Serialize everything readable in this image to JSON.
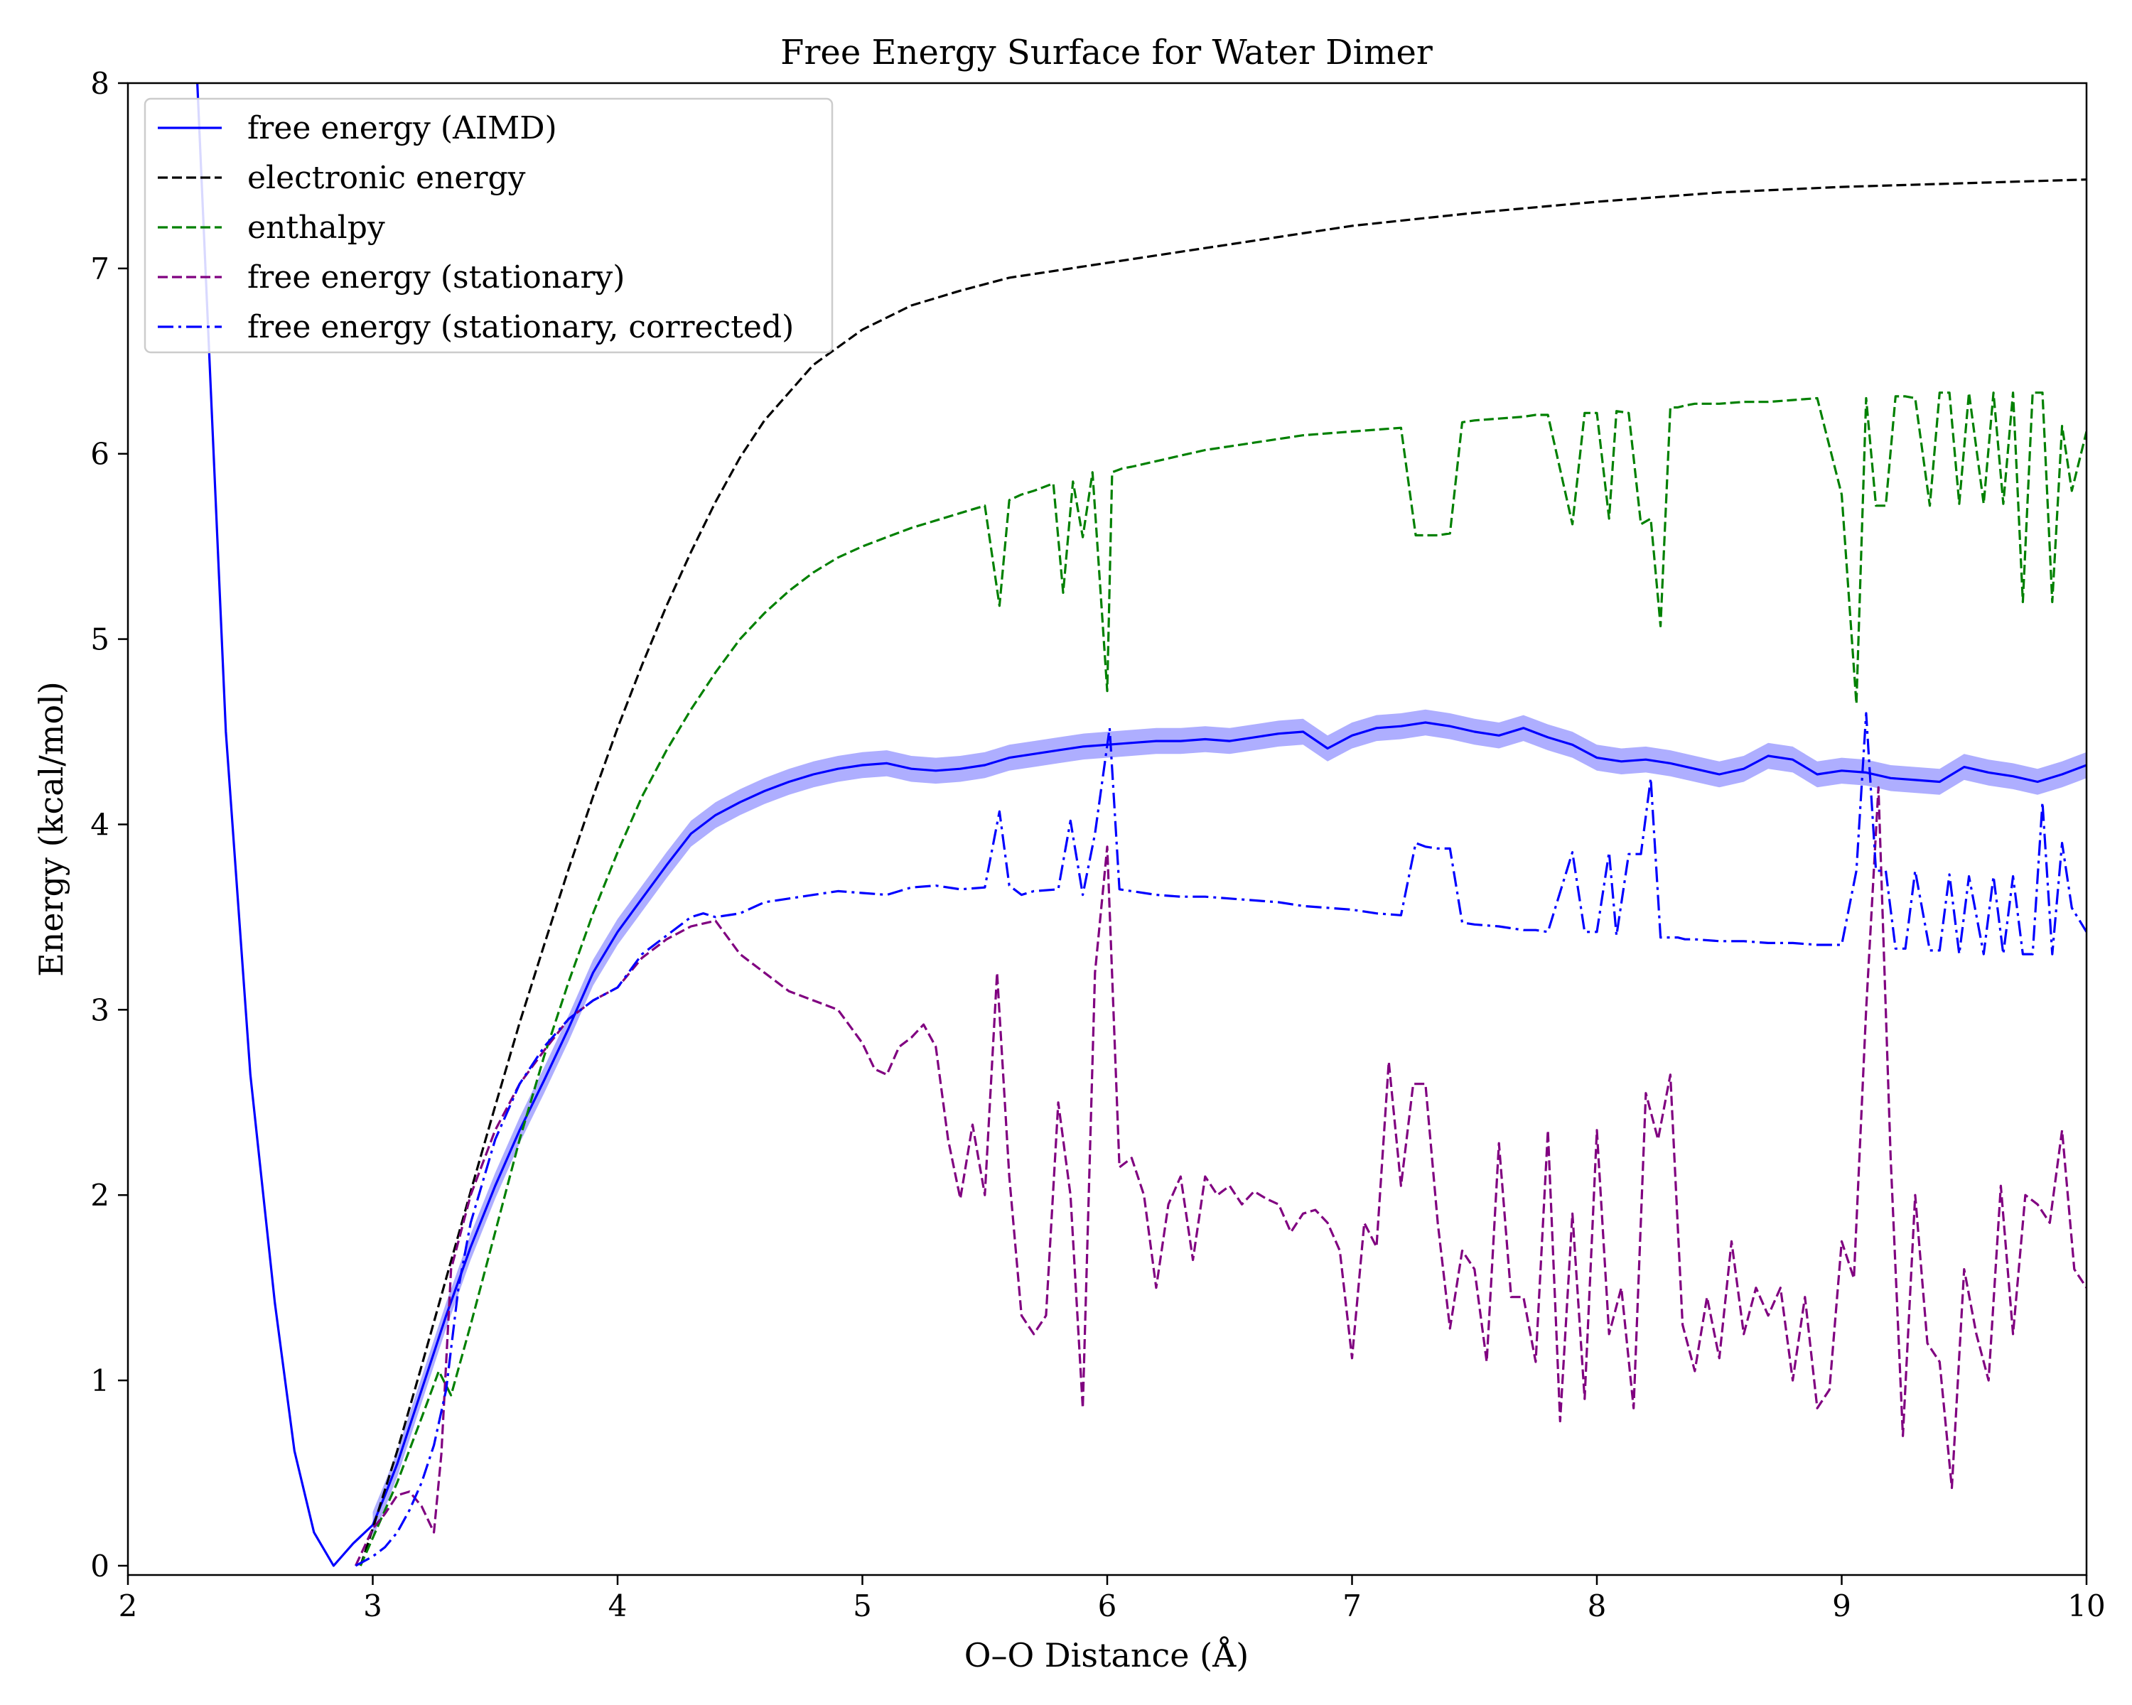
{
  "chart_data": {
    "type": "line",
    "title": "Free Energy Surface for Water Dimer",
    "xlabel": "O–O Distance (Å)",
    "ylabel": "Energy (kcal/mol)",
    "xlim": [
      2,
      10
    ],
    "ylim": [
      -0.05,
      8
    ],
    "xticks": [
      2,
      3,
      4,
      5,
      6,
      7,
      8,
      9,
      10
    ],
    "xtick_labels": [
      "2",
      "3",
      "4",
      "5",
      "6",
      "7",
      "8",
      "9",
      "10"
    ],
    "yticks": [
      0,
      1,
      2,
      3,
      4,
      5,
      6,
      7,
      8
    ],
    "ytick_labels": [
      "0",
      "1",
      "2",
      "3",
      "4",
      "5",
      "6",
      "7",
      "8"
    ],
    "grid": false,
    "legend_position": "top-left",
    "series": [
      {
        "name": "free energy (AIMD)",
        "color": "#0000ff",
        "style": "solid",
        "band_color": "#6b6bff",
        "band_half_width": 0.07,
        "x": [
          2.28,
          2.4,
          2.5,
          2.6,
          2.68,
          2.76,
          2.84,
          2.92,
          3.0,
          3.05,
          3.1,
          3.15,
          3.2,
          3.25,
          3.3,
          3.4,
          3.5,
          3.6,
          3.7,
          3.8,
          3.9,
          4.0,
          4.1,
          4.2,
          4.3,
          4.4,
          4.5,
          4.6,
          4.7,
          4.8,
          4.9,
          5.0,
          5.1,
          5.2,
          5.3,
          5.4,
          5.5,
          5.6,
          5.7,
          5.8,
          5.9,
          6.0,
          6.1,
          6.2,
          6.3,
          6.4,
          6.5,
          6.6,
          6.7,
          6.8,
          6.9,
          7.0,
          7.1,
          7.2,
          7.3,
          7.4,
          7.5,
          7.6,
          7.7,
          7.8,
          7.9,
          8.0,
          8.1,
          8.2,
          8.3,
          8.4,
          8.5,
          8.6,
          8.7,
          8.8,
          8.9,
          9.0,
          9.1,
          9.2,
          9.3,
          9.4,
          9.5,
          9.6,
          9.7,
          9.8,
          9.9,
          10.0
        ],
        "y": [
          8.1,
          4.5,
          2.65,
          1.42,
          0.62,
          0.18,
          0.0,
          0.12,
          0.22,
          0.38,
          0.55,
          0.75,
          0.95,
          1.15,
          1.35,
          1.72,
          2.05,
          2.35,
          2.62,
          2.9,
          3.2,
          3.42,
          3.6,
          3.78,
          3.95,
          4.05,
          4.12,
          4.18,
          4.23,
          4.27,
          4.3,
          4.32,
          4.33,
          4.3,
          4.29,
          4.3,
          4.32,
          4.36,
          4.38,
          4.4,
          4.42,
          4.43,
          4.44,
          4.45,
          4.45,
          4.46,
          4.45,
          4.47,
          4.49,
          4.5,
          4.41,
          4.48,
          4.52,
          4.53,
          4.55,
          4.53,
          4.5,
          4.48,
          4.52,
          4.47,
          4.43,
          4.36,
          4.34,
          4.35,
          4.33,
          4.3,
          4.27,
          4.3,
          4.37,
          4.35,
          4.27,
          4.29,
          4.28,
          4.25,
          4.24,
          4.23,
          4.31,
          4.28,
          4.26,
          4.23,
          4.27,
          4.32
        ]
      },
      {
        "name": "electronic energy",
        "color": "#000000",
        "style": "dashed",
        "x": [
          2.95,
          3.0,
          3.1,
          3.2,
          3.3,
          3.4,
          3.5,
          3.6,
          3.7,
          3.8,
          3.9,
          4.0,
          4.1,
          4.2,
          4.3,
          4.4,
          4.5,
          4.6,
          4.8,
          5.0,
          5.2,
          5.4,
          5.6,
          5.8,
          6.0,
          6.2,
          6.5,
          7.0,
          7.5,
          8.0,
          8.5,
          9.0,
          9.5,
          10.0
        ],
        "y": [
          0.0,
          0.2,
          0.62,
          1.08,
          1.55,
          2.02,
          2.48,
          2.93,
          3.35,
          3.76,
          4.15,
          4.52,
          4.86,
          5.18,
          5.47,
          5.74,
          5.98,
          6.18,
          6.48,
          6.67,
          6.8,
          6.88,
          6.95,
          6.99,
          7.03,
          7.07,
          7.13,
          7.23,
          7.3,
          7.36,
          7.41,
          7.44,
          7.46,
          7.48
        ]
      },
      {
        "name": "enthalpy",
        "color": "#008000",
        "style": "dashed",
        "x": [
          2.95,
          3.0,
          3.1,
          3.2,
          3.27,
          3.32,
          3.4,
          3.5,
          3.6,
          3.7,
          3.8,
          3.9,
          4.0,
          4.1,
          4.2,
          4.3,
          4.4,
          4.5,
          4.6,
          4.7,
          4.8,
          4.9,
          5.0,
          5.1,
          5.2,
          5.3,
          5.4,
          5.5,
          5.56,
          5.6,
          5.65,
          5.7,
          5.78,
          5.82,
          5.86,
          5.9,
          5.94,
          6.0,
          6.02,
          6.06,
          6.1,
          6.2,
          6.3,
          6.4,
          6.5,
          6.6,
          6.7,
          6.8,
          6.9,
          7.0,
          7.1,
          7.2,
          7.26,
          7.3,
          7.35,
          7.4,
          7.45,
          7.5,
          7.6,
          7.7,
          7.75,
          7.8,
          7.9,
          7.95,
          8.0,
          8.05,
          8.08,
          8.13,
          8.18,
          8.22,
          8.26,
          8.3,
          8.33,
          8.36,
          8.4,
          8.5,
          8.6,
          8.7,
          8.8,
          8.9,
          9.0,
          9.06,
          9.1,
          9.14,
          9.18,
          9.22,
          9.26,
          9.3,
          9.36,
          9.4,
          9.44,
          9.48,
          9.52,
          9.58,
          9.62,
          9.66,
          9.7,
          9.74,
          9.78,
          9.82,
          9.86,
          9.9,
          9.94,
          10.0
        ],
        "y": [
          0.0,
          0.15,
          0.45,
          0.8,
          1.05,
          0.92,
          1.3,
          1.8,
          2.3,
          2.75,
          3.15,
          3.52,
          3.85,
          4.15,
          4.4,
          4.62,
          4.82,
          5.0,
          5.14,
          5.26,
          5.36,
          5.44,
          5.5,
          5.55,
          5.6,
          5.64,
          5.68,
          5.72,
          5.18,
          5.75,
          5.78,
          5.8,
          5.84,
          5.25,
          5.85,
          5.55,
          5.9,
          4.72,
          5.9,
          5.92,
          5.93,
          5.96,
          5.99,
          6.02,
          6.04,
          6.06,
          6.08,
          6.1,
          6.11,
          6.12,
          6.13,
          6.14,
          5.56,
          5.56,
          5.56,
          5.57,
          6.17,
          6.18,
          6.19,
          6.2,
          6.21,
          6.21,
          5.62,
          6.22,
          6.22,
          5.65,
          6.23,
          6.22,
          5.62,
          5.65,
          5.07,
          6.25,
          6.25,
          6.26,
          6.27,
          6.27,
          6.28,
          6.28,
          6.29,
          6.3,
          5.78,
          4.65,
          6.3,
          5.72,
          5.72,
          6.31,
          6.31,
          6.3,
          5.72,
          6.33,
          6.33,
          5.73,
          6.33,
          5.73,
          6.33,
          5.73,
          6.33,
          5.2,
          6.33,
          6.33,
          5.2,
          6.15,
          5.8,
          6.12
        ]
      },
      {
        "name": "free energy (stationary)",
        "color": "#800080",
        "style": "dashed",
        "x": [
          2.93,
          3.0,
          3.05,
          3.1,
          3.15,
          3.2,
          3.25,
          3.28,
          3.32,
          3.4,
          3.5,
          3.6,
          3.7,
          3.8,
          3.9,
          4.0,
          4.1,
          4.2,
          4.3,
          4.4,
          4.5,
          4.6,
          4.7,
          4.8,
          4.9,
          5.0,
          5.05,
          5.1,
          5.15,
          5.2,
          5.25,
          5.3,
          5.35,
          5.4,
          5.45,
          5.5,
          5.55,
          5.6,
          5.65,
          5.7,
          5.75,
          5.8,
          5.85,
          5.9,
          5.95,
          6.0,
          6.05,
          6.1,
          6.15,
          6.2,
          6.25,
          6.3,
          6.35,
          6.4,
          6.45,
          6.5,
          6.55,
          6.6,
          6.65,
          6.7,
          6.75,
          6.8,
          6.85,
          6.9,
          6.95,
          7.0,
          7.05,
          7.1,
          7.15,
          7.2,
          7.25,
          7.3,
          7.35,
          7.4,
          7.45,
          7.5,
          7.55,
          7.6,
          7.65,
          7.7,
          7.75,
          7.8,
          7.85,
          7.9,
          7.95,
          8.0,
          8.05,
          8.1,
          8.15,
          8.2,
          8.25,
          8.3,
          8.35,
          8.4,
          8.45,
          8.5,
          8.55,
          8.6,
          8.65,
          8.7,
          8.75,
          8.8,
          8.85,
          8.9,
          8.95,
          9.0,
          9.05,
          9.1,
          9.15,
          9.2,
          9.25,
          9.3,
          9.35,
          9.4,
          9.45,
          9.5,
          9.55,
          9.6,
          9.65,
          9.7,
          9.75,
          9.8,
          9.85,
          9.9,
          9.95,
          10.0
        ],
        "y": [
          0.0,
          0.2,
          0.28,
          0.38,
          0.4,
          0.32,
          0.18,
          0.6,
          1.6,
          2.0,
          2.35,
          2.6,
          2.78,
          2.95,
          3.05,
          3.12,
          3.28,
          3.38,
          3.45,
          3.48,
          3.3,
          3.2,
          3.1,
          3.05,
          3.0,
          2.82,
          2.68,
          2.65,
          2.8,
          2.85,
          2.92,
          2.8,
          2.3,
          1.98,
          2.38,
          2.0,
          3.2,
          2.1,
          1.35,
          1.25,
          1.35,
          2.5,
          2.0,
          0.85,
          3.2,
          3.88,
          2.15,
          2.2,
          2.0,
          1.5,
          1.95,
          2.1,
          1.65,
          2.1,
          2.0,
          2.05,
          1.95,
          2.02,
          1.98,
          1.95,
          1.8,
          1.9,
          1.92,
          1.85,
          1.7,
          1.12,
          1.85,
          1.72,
          2.72,
          2.05,
          2.6,
          2.6,
          1.85,
          1.28,
          1.7,
          1.6,
          1.1,
          2.28,
          1.45,
          1.45,
          1.1,
          2.35,
          0.78,
          1.9,
          0.9,
          2.35,
          1.25,
          1.5,
          0.85,
          2.55,
          2.3,
          2.65,
          1.3,
          1.05,
          1.45,
          1.12,
          1.75,
          1.25,
          1.5,
          1.35,
          1.5,
          1.0,
          1.45,
          0.85,
          0.95,
          1.75,
          1.55,
          3.0,
          4.2,
          2.2,
          0.7,
          2.0,
          1.2,
          1.1,
          0.42,
          1.6,
          1.25,
          1.0,
          2.05,
          1.25,
          2.0,
          1.95,
          1.85,
          2.35,
          1.6,
          1.5
        ]
      },
      {
        "name": "free energy (stationary, corrected)",
        "color": "#0000ff",
        "style": "dashdot",
        "x": [
          2.93,
          3.0,
          3.05,
          3.1,
          3.15,
          3.2,
          3.25,
          3.3,
          3.35,
          3.4,
          3.5,
          3.6,
          3.7,
          3.8,
          3.9,
          4.0,
          4.1,
          4.2,
          4.3,
          4.35,
          4.4,
          4.5,
          4.6,
          4.7,
          4.8,
          4.9,
          5.0,
          5.1,
          5.2,
          5.3,
          5.4,
          5.5,
          5.56,
          5.6,
          5.65,
          5.7,
          5.8,
          5.85,
          5.9,
          5.95,
          6.01,
          6.05,
          6.1,
          6.2,
          6.3,
          6.4,
          6.5,
          6.6,
          6.7,
          6.8,
          6.9,
          7.0,
          7.1,
          7.2,
          7.26,
          7.3,
          7.35,
          7.4,
          7.45,
          7.5,
          7.6,
          7.7,
          7.75,
          7.8,
          7.9,
          7.95,
          8.0,
          8.05,
          8.08,
          8.13,
          8.18,
          8.22,
          8.26,
          8.3,
          8.33,
          8.36,
          8.4,
          8.5,
          8.6,
          8.7,
          8.8,
          8.9,
          9.0,
          9.06,
          9.1,
          9.14,
          9.18,
          9.22,
          9.26,
          9.3,
          9.36,
          9.4,
          9.44,
          9.48,
          9.52,
          9.58,
          9.62,
          9.66,
          9.7,
          9.74,
          9.78,
          9.82,
          9.86,
          9.9,
          9.94,
          10.0
        ],
        "y": [
          0.0,
          0.05,
          0.1,
          0.18,
          0.3,
          0.45,
          0.65,
          0.95,
          1.5,
          1.85,
          2.3,
          2.6,
          2.8,
          2.95,
          3.05,
          3.12,
          3.3,
          3.4,
          3.5,
          3.52,
          3.5,
          3.52,
          3.58,
          3.6,
          3.62,
          3.64,
          3.63,
          3.62,
          3.66,
          3.67,
          3.65,
          3.66,
          4.07,
          3.67,
          3.62,
          3.64,
          3.65,
          4.02,
          3.62,
          3.95,
          4.52,
          3.65,
          3.64,
          3.62,
          3.61,
          3.61,
          3.6,
          3.59,
          3.58,
          3.56,
          3.55,
          3.54,
          3.52,
          3.51,
          3.9,
          3.88,
          3.87,
          3.87,
          3.47,
          3.46,
          3.45,
          3.43,
          3.43,
          3.42,
          3.85,
          3.42,
          3.42,
          3.85,
          3.4,
          3.84,
          3.84,
          4.25,
          3.39,
          3.39,
          3.39,
          3.38,
          3.38,
          3.37,
          3.37,
          3.36,
          3.36,
          3.35,
          3.35,
          3.75,
          4.6,
          3.75,
          3.75,
          3.33,
          3.33,
          3.75,
          3.32,
          3.32,
          3.73,
          3.3,
          3.72,
          3.3,
          3.72,
          3.3,
          3.72,
          3.3,
          3.3,
          4.12,
          3.3,
          3.9,
          3.55,
          3.42
        ]
      }
    ]
  }
}
